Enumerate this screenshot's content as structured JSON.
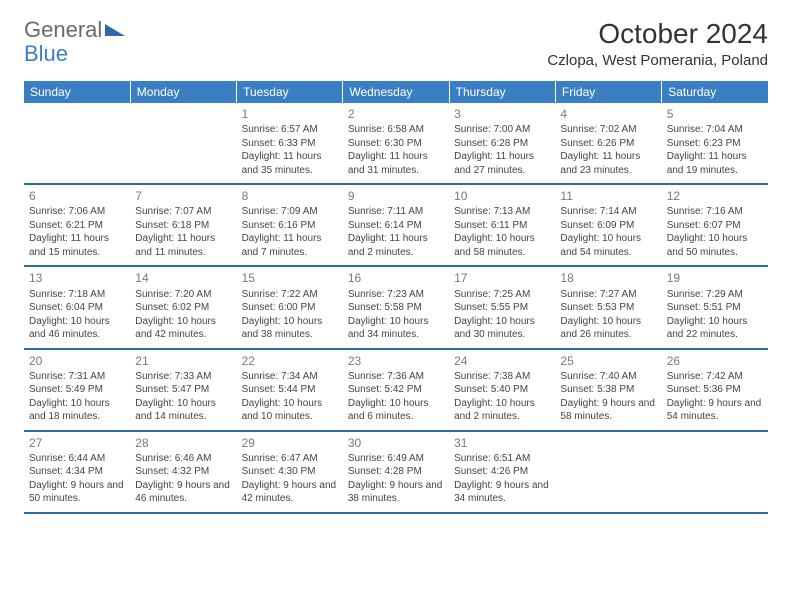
{
  "brand": {
    "part1": "General",
    "part2": "Blue"
  },
  "colors": {
    "header_bg": "#3a7fc4",
    "header_text": "#ffffff",
    "row_border": "#2f6aa8",
    "daynum": "#7a7a7a",
    "body_text": "#454545",
    "brand_gray": "#6a6a6a",
    "brand_blue": "#3a7fc4",
    "background": "#ffffff"
  },
  "title": "October 2024",
  "location": "Czlopa, West Pomerania, Poland",
  "weekdays": [
    "Sunday",
    "Monday",
    "Tuesday",
    "Wednesday",
    "Thursday",
    "Friday",
    "Saturday"
  ],
  "weeks": [
    [
      null,
      null,
      {
        "n": "1",
        "sr": "Sunrise: 6:57 AM",
        "ss": "Sunset: 6:33 PM",
        "dl": "Daylight: 11 hours and 35 minutes."
      },
      {
        "n": "2",
        "sr": "Sunrise: 6:58 AM",
        "ss": "Sunset: 6:30 PM",
        "dl": "Daylight: 11 hours and 31 minutes."
      },
      {
        "n": "3",
        "sr": "Sunrise: 7:00 AM",
        "ss": "Sunset: 6:28 PM",
        "dl": "Daylight: 11 hours and 27 minutes."
      },
      {
        "n": "4",
        "sr": "Sunrise: 7:02 AM",
        "ss": "Sunset: 6:26 PM",
        "dl": "Daylight: 11 hours and 23 minutes."
      },
      {
        "n": "5",
        "sr": "Sunrise: 7:04 AM",
        "ss": "Sunset: 6:23 PM",
        "dl": "Daylight: 11 hours and 19 minutes."
      }
    ],
    [
      {
        "n": "6",
        "sr": "Sunrise: 7:06 AM",
        "ss": "Sunset: 6:21 PM",
        "dl": "Daylight: 11 hours and 15 minutes."
      },
      {
        "n": "7",
        "sr": "Sunrise: 7:07 AM",
        "ss": "Sunset: 6:18 PM",
        "dl": "Daylight: 11 hours and 11 minutes."
      },
      {
        "n": "8",
        "sr": "Sunrise: 7:09 AM",
        "ss": "Sunset: 6:16 PM",
        "dl": "Daylight: 11 hours and 7 minutes."
      },
      {
        "n": "9",
        "sr": "Sunrise: 7:11 AM",
        "ss": "Sunset: 6:14 PM",
        "dl": "Daylight: 11 hours and 2 minutes."
      },
      {
        "n": "10",
        "sr": "Sunrise: 7:13 AM",
        "ss": "Sunset: 6:11 PM",
        "dl": "Daylight: 10 hours and 58 minutes."
      },
      {
        "n": "11",
        "sr": "Sunrise: 7:14 AM",
        "ss": "Sunset: 6:09 PM",
        "dl": "Daylight: 10 hours and 54 minutes."
      },
      {
        "n": "12",
        "sr": "Sunrise: 7:16 AM",
        "ss": "Sunset: 6:07 PM",
        "dl": "Daylight: 10 hours and 50 minutes."
      }
    ],
    [
      {
        "n": "13",
        "sr": "Sunrise: 7:18 AM",
        "ss": "Sunset: 6:04 PM",
        "dl": "Daylight: 10 hours and 46 minutes."
      },
      {
        "n": "14",
        "sr": "Sunrise: 7:20 AM",
        "ss": "Sunset: 6:02 PM",
        "dl": "Daylight: 10 hours and 42 minutes."
      },
      {
        "n": "15",
        "sr": "Sunrise: 7:22 AM",
        "ss": "Sunset: 6:00 PM",
        "dl": "Daylight: 10 hours and 38 minutes."
      },
      {
        "n": "16",
        "sr": "Sunrise: 7:23 AM",
        "ss": "Sunset: 5:58 PM",
        "dl": "Daylight: 10 hours and 34 minutes."
      },
      {
        "n": "17",
        "sr": "Sunrise: 7:25 AM",
        "ss": "Sunset: 5:55 PM",
        "dl": "Daylight: 10 hours and 30 minutes."
      },
      {
        "n": "18",
        "sr": "Sunrise: 7:27 AM",
        "ss": "Sunset: 5:53 PM",
        "dl": "Daylight: 10 hours and 26 minutes."
      },
      {
        "n": "19",
        "sr": "Sunrise: 7:29 AM",
        "ss": "Sunset: 5:51 PM",
        "dl": "Daylight: 10 hours and 22 minutes."
      }
    ],
    [
      {
        "n": "20",
        "sr": "Sunrise: 7:31 AM",
        "ss": "Sunset: 5:49 PM",
        "dl": "Daylight: 10 hours and 18 minutes."
      },
      {
        "n": "21",
        "sr": "Sunrise: 7:33 AM",
        "ss": "Sunset: 5:47 PM",
        "dl": "Daylight: 10 hours and 14 minutes."
      },
      {
        "n": "22",
        "sr": "Sunrise: 7:34 AM",
        "ss": "Sunset: 5:44 PM",
        "dl": "Daylight: 10 hours and 10 minutes."
      },
      {
        "n": "23",
        "sr": "Sunrise: 7:36 AM",
        "ss": "Sunset: 5:42 PM",
        "dl": "Daylight: 10 hours and 6 minutes."
      },
      {
        "n": "24",
        "sr": "Sunrise: 7:38 AM",
        "ss": "Sunset: 5:40 PM",
        "dl": "Daylight: 10 hours and 2 minutes."
      },
      {
        "n": "25",
        "sr": "Sunrise: 7:40 AM",
        "ss": "Sunset: 5:38 PM",
        "dl": "Daylight: 9 hours and 58 minutes."
      },
      {
        "n": "26",
        "sr": "Sunrise: 7:42 AM",
        "ss": "Sunset: 5:36 PM",
        "dl": "Daylight: 9 hours and 54 minutes."
      }
    ],
    [
      {
        "n": "27",
        "sr": "Sunrise: 6:44 AM",
        "ss": "Sunset: 4:34 PM",
        "dl": "Daylight: 9 hours and 50 minutes."
      },
      {
        "n": "28",
        "sr": "Sunrise: 6:46 AM",
        "ss": "Sunset: 4:32 PM",
        "dl": "Daylight: 9 hours and 46 minutes."
      },
      {
        "n": "29",
        "sr": "Sunrise: 6:47 AM",
        "ss": "Sunset: 4:30 PM",
        "dl": "Daylight: 9 hours and 42 minutes."
      },
      {
        "n": "30",
        "sr": "Sunrise: 6:49 AM",
        "ss": "Sunset: 4:28 PM",
        "dl": "Daylight: 9 hours and 38 minutes."
      },
      {
        "n": "31",
        "sr": "Sunrise: 6:51 AM",
        "ss": "Sunset: 4:26 PM",
        "dl": "Daylight: 9 hours and 34 minutes."
      },
      null,
      null
    ]
  ]
}
